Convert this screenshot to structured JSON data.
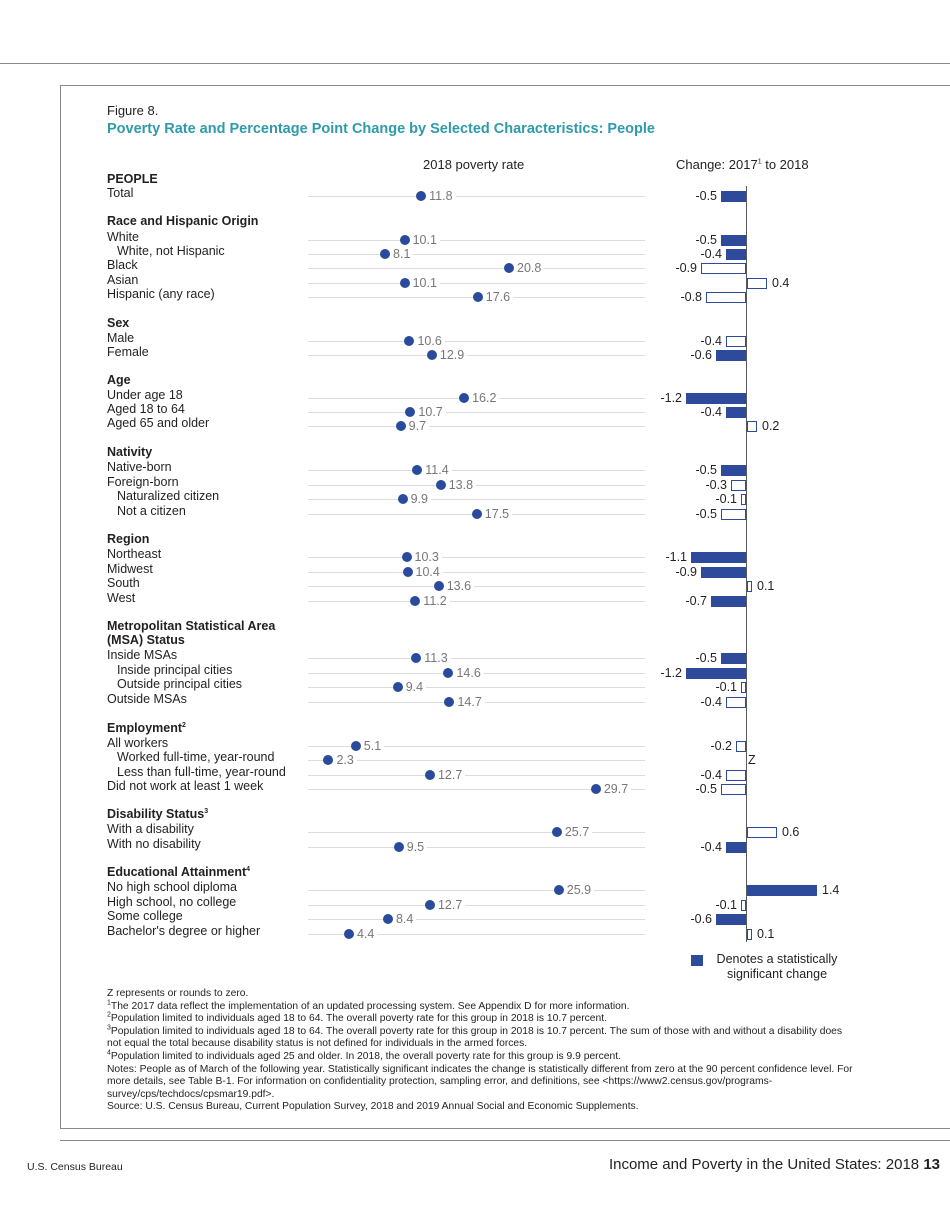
{
  "figure_label": "Figure 8.",
  "title": "Poverty Rate and Percentage Point Change by Selected Characteristics: People",
  "chart_data": {
    "type": "dot-and-bar",
    "panels": [
      {
        "title": "2018 poverty rate",
        "type": "dot",
        "xlim": [
          0,
          34.5
        ]
      },
      {
        "title_pre": "Change: 2017",
        "title_sup": "1",
        "title_post": " to 2018",
        "type": "bar",
        "xlim": [
          -1.2,
          1.4
        ]
      }
    ],
    "colors": {
      "dot": "#2a4b9b",
      "significant": "#2e4a9a",
      "title": "#2e9aaa"
    },
    "groups": [
      {
        "title": "PEOPLE",
        "rows": [
          {
            "label": "Total",
            "indent": false,
            "rate": 11.8,
            "change": -0.5,
            "significant": true
          }
        ]
      },
      {
        "title": "Race and Hispanic Origin",
        "rows": [
          {
            "label": "White",
            "indent": false,
            "rate": 10.1,
            "change": -0.5,
            "significant": true
          },
          {
            "label": "White, not Hispanic",
            "indent": true,
            "rate": 8.1,
            "change": -0.4,
            "significant": true
          },
          {
            "label": "Black",
            "indent": false,
            "rate": 20.8,
            "change": -0.9,
            "significant": false
          },
          {
            "label": "Asian",
            "indent": false,
            "rate": 10.1,
            "change": 0.4,
            "significant": false
          },
          {
            "label": "Hispanic (any race)",
            "indent": false,
            "rate": 17.6,
            "change": -0.8,
            "significant": false
          }
        ]
      },
      {
        "title": "Sex",
        "rows": [
          {
            "label": "Male",
            "indent": false,
            "rate": 10.6,
            "change": -0.4,
            "significant": false
          },
          {
            "label": "Female",
            "indent": false,
            "rate": 12.9,
            "change": -0.6,
            "significant": true
          }
        ]
      },
      {
        "title": "Age",
        "rows": [
          {
            "label": "Under age 18",
            "indent": false,
            "rate": 16.2,
            "change": -1.2,
            "significant": true
          },
          {
            "label": "Aged 18 to 64",
            "indent": false,
            "rate": 10.7,
            "change": -0.4,
            "significant": true
          },
          {
            "label": "Aged 65 and older",
            "indent": false,
            "rate": 9.7,
            "change": 0.2,
            "significant": false
          }
        ]
      },
      {
        "title": "Nativity",
        "rows": [
          {
            "label": "Native-born",
            "indent": false,
            "rate": 11.4,
            "change": -0.5,
            "significant": true
          },
          {
            "label": "Foreign-born",
            "indent": false,
            "rate": 13.8,
            "change": -0.3,
            "significant": false
          },
          {
            "label": "Naturalized citizen",
            "indent": true,
            "rate": 9.9,
            "change": -0.1,
            "significant": false
          },
          {
            "label": "Not a citizen",
            "indent": true,
            "rate": 17.5,
            "change": -0.5,
            "significant": false
          }
        ]
      },
      {
        "title": "Region",
        "rows": [
          {
            "label": "Northeast",
            "indent": false,
            "rate": 10.3,
            "change": -1.1,
            "significant": true
          },
          {
            "label": "Midwest",
            "indent": false,
            "rate": 10.4,
            "change": -0.9,
            "significant": true
          },
          {
            "label": "South",
            "indent": false,
            "rate": 13.6,
            "change": 0.1,
            "significant": false
          },
          {
            "label": "West",
            "indent": false,
            "rate": 11.2,
            "change": -0.7,
            "significant": true
          }
        ]
      },
      {
        "title": "Metropolitan Statistical Area (MSA) Status",
        "title_lines": [
          "Metropolitan Statistical Area",
          "(MSA) Status"
        ],
        "rows": [
          {
            "label": "Inside MSAs",
            "indent": false,
            "rate": 11.3,
            "change": -0.5,
            "significant": true
          },
          {
            "label": "Inside principal cities",
            "indent": true,
            "rate": 14.6,
            "change": -1.2,
            "significant": true
          },
          {
            "label": "Outside principal cities",
            "indent": true,
            "rate": 9.4,
            "change": -0.1,
            "significant": false
          },
          {
            "label": "Outside MSAs",
            "indent": false,
            "rate": 14.7,
            "change": -0.4,
            "significant": false
          }
        ]
      },
      {
        "title": "Employment",
        "sup": "2",
        "rows": [
          {
            "label": "All workers",
            "indent": false,
            "rate": 5.1,
            "change": -0.2,
            "significant": false
          },
          {
            "label": "Worked full-time, year-round",
            "indent": true,
            "rate": 2.3,
            "change": "Z",
            "significant": false
          },
          {
            "label": "Less than full-time, year-round",
            "indent": true,
            "rate": 12.7,
            "change": -0.4,
            "significant": false
          },
          {
            "label": "Did not work at least 1 week",
            "indent": false,
            "rate": 29.7,
            "change": -0.5,
            "significant": false
          }
        ]
      },
      {
        "title": "Disability Status",
        "sup": "3",
        "rows": [
          {
            "label": "With a disability",
            "indent": false,
            "rate": 25.7,
            "change": 0.6,
            "significant": false
          },
          {
            "label": "With no disability",
            "indent": false,
            "rate": 9.5,
            "change": -0.4,
            "significant": true
          }
        ]
      },
      {
        "title": "Educational Attainment",
        "sup": "4",
        "rows": [
          {
            "label": "No high school diploma",
            "indent": false,
            "rate": 25.9,
            "change": 1.4,
            "significant": true
          },
          {
            "label": "High school, no college",
            "indent": false,
            "rate": 12.7,
            "change": -0.1,
            "significant": false
          },
          {
            "label": "Some college",
            "indent": false,
            "rate": 8.4,
            "change": -0.6,
            "significant": true
          },
          {
            "label": "Bachelor's degree or higher",
            "indent": false,
            "rate": 4.4,
            "change": 0.1,
            "significant": false
          }
        ]
      }
    ],
    "legend": "Denotes a statistically significant change"
  },
  "notes": [
    {
      "sup": "",
      "text": "Z represents or rounds to zero."
    },
    {
      "sup": "1",
      "text": "The 2017 data reflect the implementation of an updated processing system. See Appendix D for more information."
    },
    {
      "sup": "2",
      "text": "Population limited to individuals aged 18 to 64. The overall poverty rate for this group in 2018 is 10.7 percent."
    },
    {
      "sup": "3",
      "text": "Population limited to individuals aged 18 to 64. The overall poverty rate for this group in 2018 is 10.7 percent. The sum of those with and without a disability does not equal the total because disability status is not defined for individuals in the armed forces."
    },
    {
      "sup": "4",
      "text": "Population limited to individuals aged 25 and older. In 2018, the overall poverty rate for this group is 9.9 percent."
    },
    {
      "sup": "",
      "text": "Notes: People as of March of the following year. Statistically significant indicates the change is statistically different from zero at the 90 percent confidence level. For more details, see Table B-1. For information on confidentiality protection, sampling error, and definitions, see <https://www2.census.gov/programs-survey/cps/techdocs/cpsmar19.pdf>."
    },
    {
      "sup": "",
      "text": "Source: U.S. Census Bureau, Current Population Survey, 2018 and 2019 Annual Social and Economic Supplements."
    }
  ],
  "footer": {
    "left": "U.S. Census Bureau",
    "right": "Income and Poverty in the United States: 2018",
    "page": "13"
  }
}
